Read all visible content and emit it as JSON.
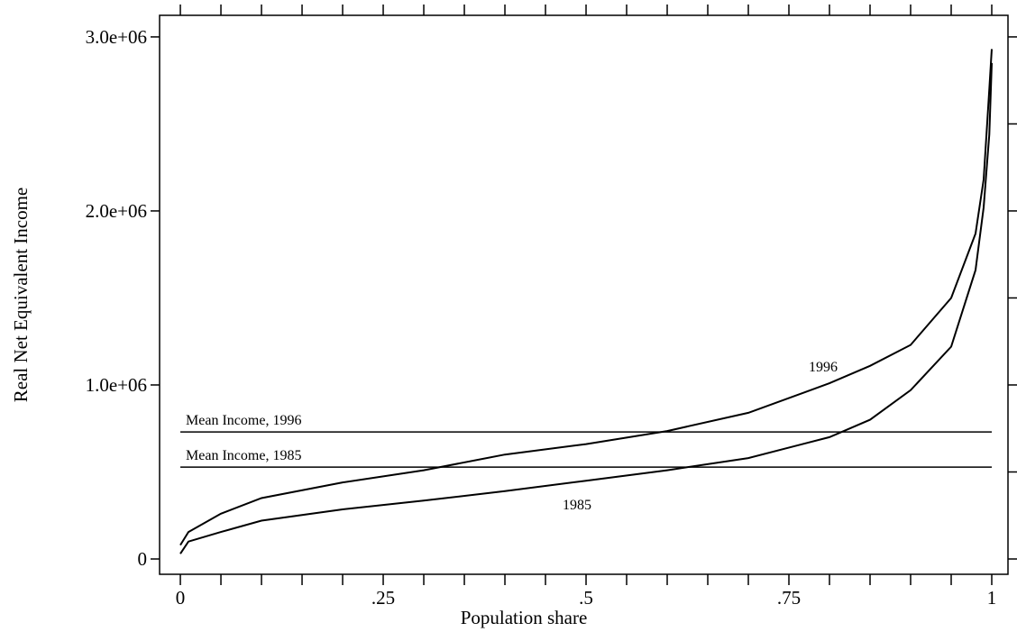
{
  "chart_data": {
    "type": "line",
    "xlabel": "Population share",
    "ylabel": "Real Net Equivalent Income",
    "x": [
      0,
      0.01,
      0.05,
      0.1,
      0.2,
      0.3,
      0.4,
      0.5,
      0.6,
      0.7,
      0.8,
      0.85,
      0.9,
      0.95,
      0.98,
      0.99,
      0.997,
      1
    ],
    "series": [
      {
        "name": "1996",
        "color": "#000000",
        "values": [
          80000,
          155000,
          260000,
          350000,
          440000,
          510000,
          600000,
          660000,
          735000,
          840000,
          1010000,
          1110000,
          1230000,
          1500000,
          1870000,
          2180000,
          2700000,
          2930000
        ]
      },
      {
        "name": "1985",
        "color": "#000000",
        "values": [
          30000,
          100000,
          155000,
          220000,
          285000,
          335000,
          390000,
          450000,
          510000,
          580000,
          700000,
          800000,
          970000,
          1220000,
          1660000,
          2020000,
          2440000,
          2850000
        ]
      }
    ],
    "hlines": [
      {
        "label": "Mean Income, 1996",
        "value": 730000
      },
      {
        "label": "Mean Income, 1985",
        "value": 528000
      }
    ],
    "xlim": [
      -0.0256,
      1.02
    ],
    "ylim": [
      -88000,
      3124000
    ],
    "xticks": [
      0,
      {
        "value": 0.25,
        "label": ".25"
      },
      {
        "value": 0.5,
        "label": ".5"
      },
      {
        "value": 0.75,
        "label": ".75"
      },
      1
    ],
    "xminor_ticks": [
      0.05,
      0.1,
      0.15,
      0.2,
      0.3,
      0.35,
      0.4,
      0.45,
      0.55,
      0.6,
      0.65,
      0.7,
      0.8,
      0.85,
      0.9,
      0.95
    ],
    "yticks": [
      0,
      {
        "value": 1000000,
        "label": "1.0e+06"
      },
      {
        "value": 2000000,
        "label": "2.0e+06"
      },
      {
        "value": 3000000,
        "label": "3.0e+06"
      }
    ],
    "yminor_ticks": [
      500000,
      1500000,
      2500000
    ],
    "grid": false
  }
}
